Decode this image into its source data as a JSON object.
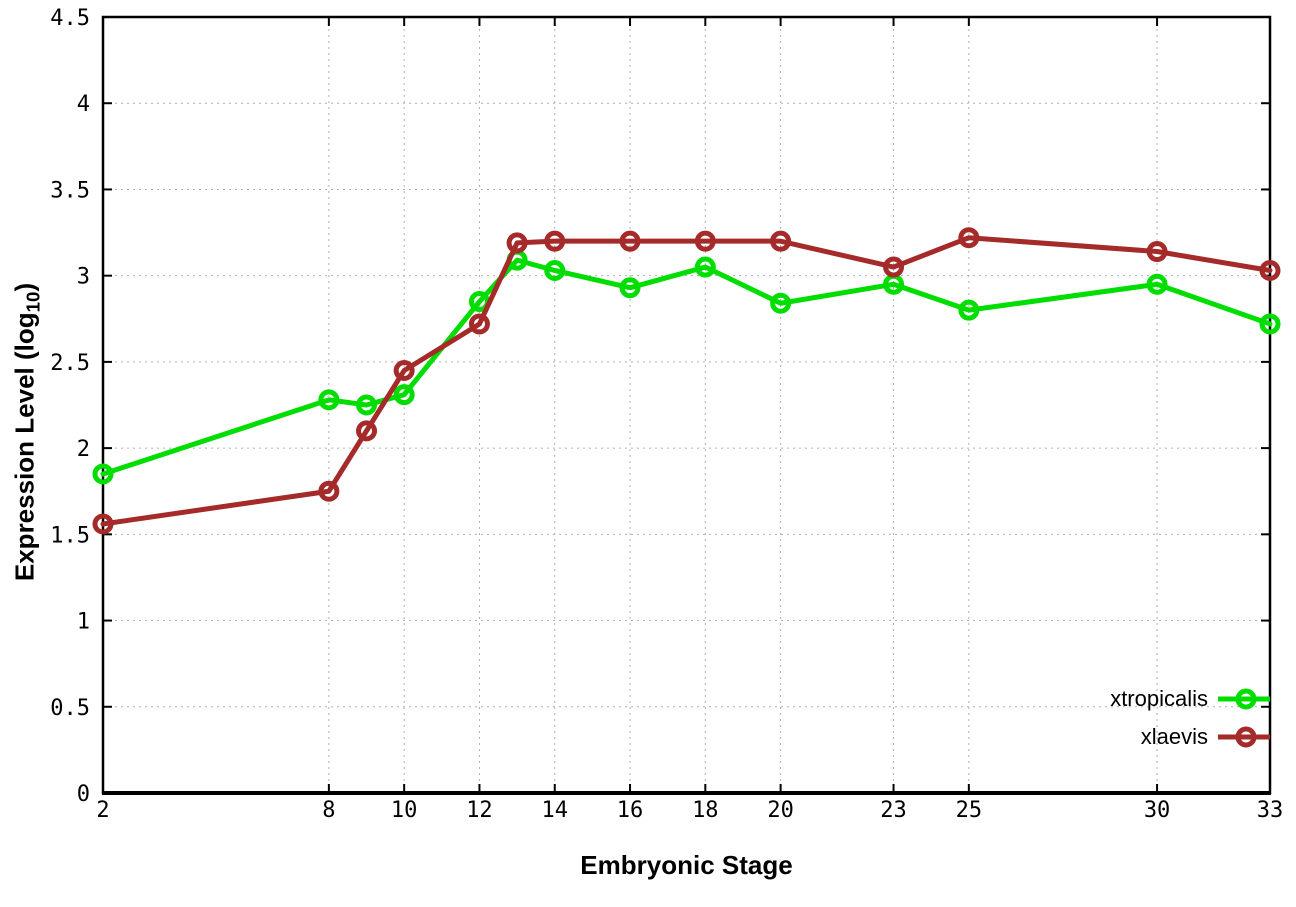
{
  "chart_data": {
    "type": "line",
    "title": "",
    "xlabel": "Embryonic Stage",
    "ylabel": "Expression Level (log10)",
    "ylabel_text": "Expression Level (log",
    "ylabel_sub": "10",
    "ylabel_suffix": ")",
    "xlim": [
      2,
      33
    ],
    "ylim": [
      0,
      4.5
    ],
    "xticks": [
      2,
      8,
      10,
      12,
      14,
      16,
      18,
      20,
      23,
      25,
      30,
      33
    ],
    "yticks": [
      0,
      0.5,
      1,
      1.5,
      2,
      2.5,
      3,
      3.5,
      4,
      4.5
    ],
    "ytick_labels": [
      "0",
      "0.5",
      "1",
      "1.5",
      "2",
      "2.5",
      "3",
      "3.5",
      "4",
      "4.5"
    ],
    "grid": true,
    "legend_position": "bottom-right",
    "x": [
      2,
      8,
      9,
      10,
      12,
      13,
      14,
      16,
      18,
      20,
      23,
      25,
      30,
      33
    ],
    "series": [
      {
        "name": "xtropicalis",
        "color": "#00dd00",
        "values": [
          1.85,
          2.28,
          2.25,
          2.31,
          2.85,
          3.09,
          3.03,
          2.93,
          3.05,
          2.84,
          2.95,
          2.8,
          2.95,
          2.72
        ]
      },
      {
        "name": "xlaevis",
        "color": "#a52a2a",
        "values": [
          1.56,
          1.75,
          2.1,
          2.45,
          2.72,
          3.19,
          3.2,
          3.2,
          3.2,
          3.2,
          3.05,
          3.22,
          3.14,
          3.03
        ]
      }
    ],
    "colors": {
      "border": "#000000",
      "grid": "#b0b0b0",
      "background": "#ffffff"
    }
  }
}
